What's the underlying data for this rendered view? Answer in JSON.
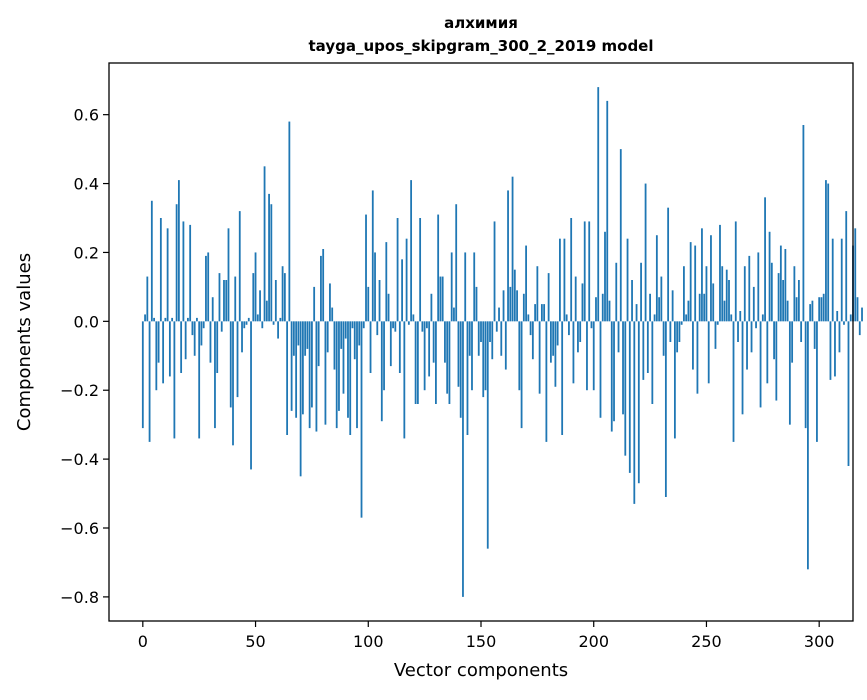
{
  "chart_data": {
    "type": "bar",
    "title": "алхимия",
    "subtitle": "tayga_upos_skipgram_300_2_2019 model",
    "xlabel": "Vector components",
    "ylabel": "Components values",
    "xlim": [
      -15,
      315
    ],
    "ylim": [
      -0.87,
      0.75
    ],
    "xticks": [
      0,
      50,
      100,
      150,
      200,
      250,
      300
    ],
    "xtick_labels": [
      "0",
      "50",
      "100",
      "150",
      "200",
      "250",
      "300"
    ],
    "yticks": [
      -0.8,
      -0.6,
      -0.4,
      -0.2,
      0.0,
      0.2,
      0.4,
      0.6
    ],
    "ytick_labels": [
      "−0.8",
      "−0.6",
      "−0.4",
      "−0.2",
      "0.0",
      "0.2",
      "0.4",
      "0.6"
    ],
    "grid": false,
    "bar_color": "#1f77b4",
    "values": [
      -0.31,
      0.02,
      0.13,
      -0.35,
      0.35,
      0.01,
      -0.2,
      -0.12,
      0.3,
      -0.18,
      0.01,
      0.27,
      -0.16,
      0.01,
      -0.34,
      0.34,
      0.41,
      -0.15,
      0.29,
      -0.11,
      0.01,
      0.28,
      -0.04,
      -0.1,
      0.01,
      -0.34,
      -0.07,
      -0.02,
      0.19,
      0.2,
      -0.12,
      0.07,
      -0.31,
      -0.15,
      0.14,
      -0.03,
      0.12,
      0.12,
      0.27,
      -0.25,
      -0.36,
      0.13,
      -0.22,
      0.32,
      -0.09,
      -0.02,
      -0.01,
      0.01,
      -0.43,
      0.14,
      0.2,
      0.02,
      0.09,
      -0.02,
      0.45,
      0.06,
      0.37,
      0.34,
      -0.01,
      0.12,
      -0.05,
      0.01,
      0.16,
      0.14,
      -0.33,
      0.58,
      -0.26,
      -0.1,
      -0.28,
      -0.07,
      -0.45,
      -0.27,
      -0.1,
      -0.08,
      -0.31,
      -0.25,
      0.1,
      -0.32,
      -0.13,
      0.19,
      0.21,
      -0.3,
      -0.09,
      0.11,
      0.04,
      -0.14,
      -0.31,
      -0.26,
      -0.08,
      -0.21,
      -0.05,
      -0.28,
      -0.33,
      -0.02,
      -0.11,
      -0.31,
      -0.07,
      -0.57,
      -0.02,
      0.31,
      0.1,
      -0.15,
      0.38,
      0.2,
      -0.04,
      0.12,
      -0.29,
      -0.2,
      0.23,
      0.08,
      -0.13,
      -0.02,
      -0.03,
      0.3,
      -0.15,
      0.18,
      -0.34,
      0.24,
      -0.01,
      0.41,
      0.02,
      -0.24,
      -0.24,
      0.3,
      -0.03,
      -0.2,
      -0.02,
      -0.16,
      0.08,
      -0.12,
      -0.24,
      0.31,
      0.13,
      0.13,
      -0.12,
      -0.21,
      -0.24,
      0.2,
      0.04,
      0.34,
      -0.19,
      -0.28,
      -0.8,
      0.2,
      -0.33,
      -0.1,
      -0.2,
      0.2,
      0.1,
      -0.1,
      -0.06,
      -0.22,
      -0.2,
      -0.66,
      -0.06,
      -0.11,
      0.29,
      -0.03,
      0.04,
      -0.1,
      0.09,
      -0.14,
      0.38,
      0.1,
      0.42,
      0.15,
      0.09,
      -0.2,
      -0.31,
      0.08,
      0.22,
      0.02,
      -0.04,
      -0.11,
      0.05,
      0.16,
      -0.21,
      0.05,
      0.05,
      -0.35,
      0.14,
      -0.12,
      -0.1,
      -0.19,
      -0.07,
      0.24,
      -0.33,
      0.24,
      0.02,
      -0.04,
      0.3,
      -0.18,
      0.13,
      -0.09,
      -0.06,
      0.11,
      0.29,
      -0.2,
      0.29,
      -0.02,
      -0.2,
      0.07,
      0.68,
      -0.28,
      0.08,
      0.26,
      0.64,
      0.06,
      -0.32,
      -0.29,
      0.17,
      -0.09,
      0.5,
      -0.27,
      -0.39,
      0.24,
      -0.44,
      0.12,
      -0.53,
      0.05,
      -0.47,
      0.17,
      -0.17,
      0.4,
      -0.15,
      0.08,
      -0.24,
      0.02,
      0.25,
      0.07,
      0.13,
      -0.1,
      -0.51,
      0.33,
      -0.06,
      0.09,
      -0.34,
      -0.09,
      -0.06,
      -0.01,
      0.16,
      0.02,
      0.06,
      0.23,
      -0.14,
      0.22,
      -0.21,
      0.08,
      0.27,
      0.08,
      0.16,
      -0.18,
      0.25,
      0.11,
      -0.08,
      -0.01,
      0.28,
      0.16,
      0.06,
      0.15,
      0.12,
      0.02,
      -0.35,
      0.29,
      -0.06,
      0.03,
      -0.27,
      0.16,
      -0.14,
      0.19,
      -0.09,
      0.1,
      -0.02,
      0.2,
      -0.25,
      0.02,
      0.36,
      -0.18,
      0.26,
      0.17,
      -0.11,
      -0.23,
      0.14,
      0.22,
      0.12,
      0.21,
      0.06,
      -0.3,
      -0.12,
      0.16,
      0.07,
      0.12,
      -0.06,
      0.57,
      -0.31,
      -0.72,
      0.05,
      0.06,
      -0.08,
      -0.35,
      0.07,
      0.07,
      0.08,
      0.41,
      0.4,
      -0.17,
      0.24,
      -0.16,
      0.03,
      -0.09,
      0.24,
      -0.01,
      0.32,
      -0.42,
      0.02,
      0.22,
      0.27,
      0.07,
      -0.04,
      0.04
    ]
  }
}
